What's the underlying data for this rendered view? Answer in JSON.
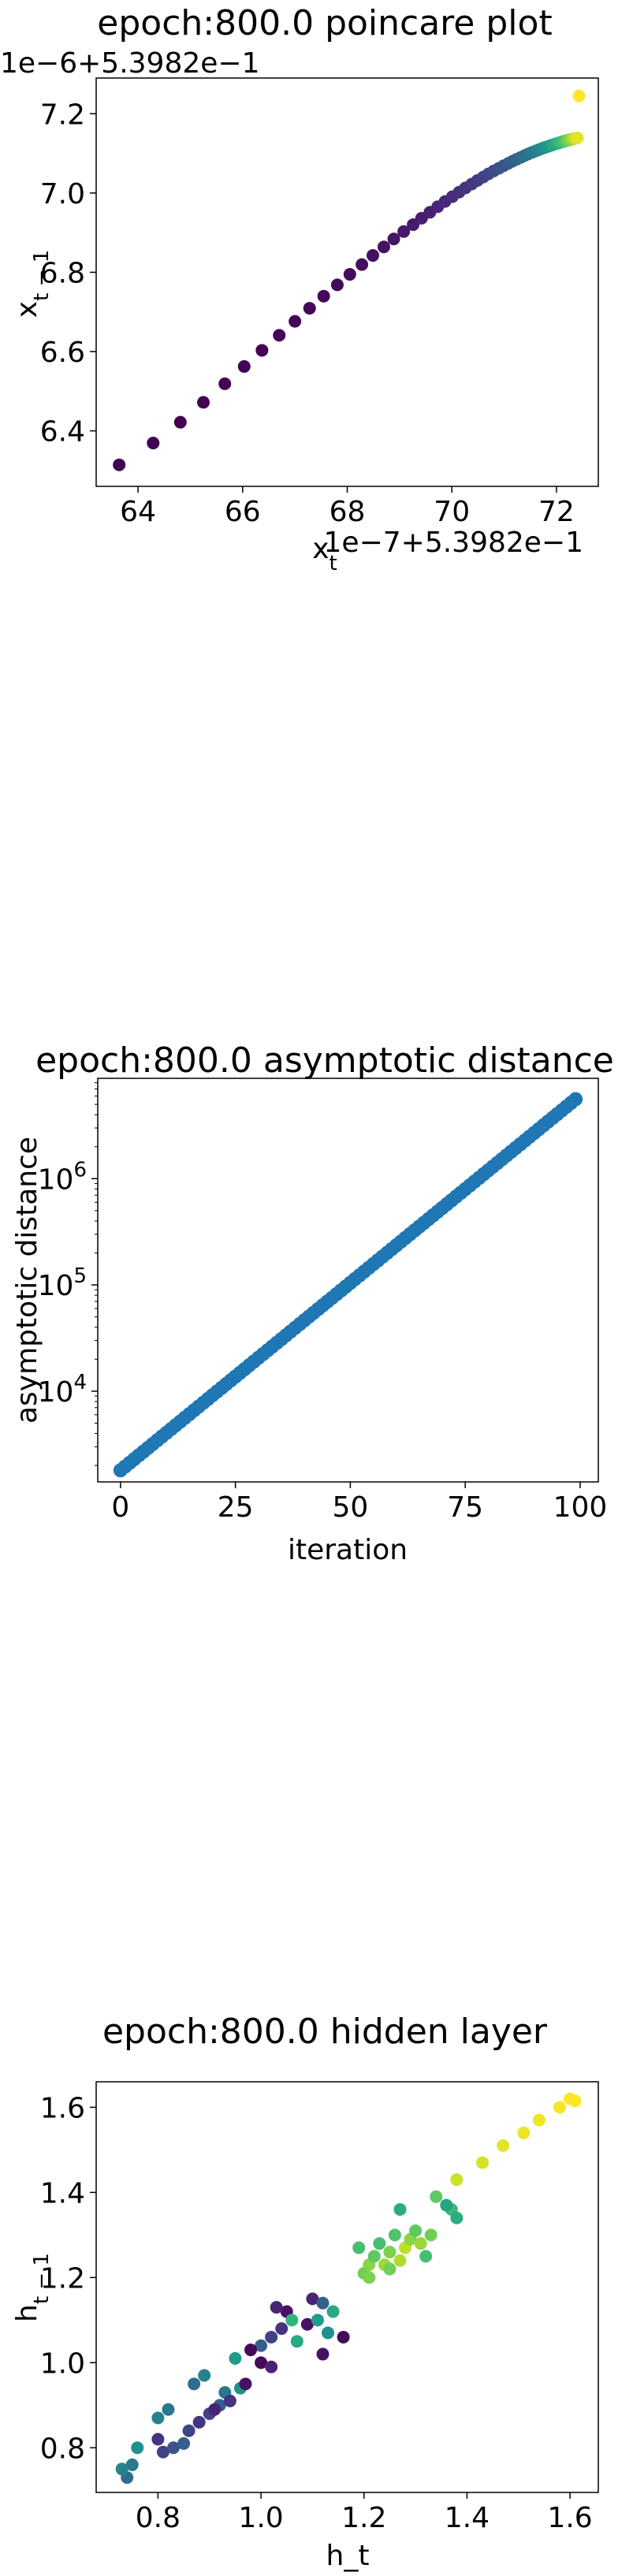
{
  "chart_data": [
    {
      "type": "scatter",
      "title": "epoch:800.0 poincare plot",
      "xlabel": "x_t",
      "ylabel": "x_{t-1}",
      "x_offset_label": "1e−7+5.3982e−1",
      "y_offset_label": "1e−6+5.3982e−1",
      "x_ticks": [
        "64",
        "66",
        "68",
        "70",
        "72"
      ],
      "y_ticks": [
        "6.4",
        "6.6",
        "6.8",
        "7.0",
        "7.2"
      ],
      "xlim": [
        63.2,
        72.8
      ],
      "ylim": [
        6.26,
        7.29
      ],
      "colormap": "viridis",
      "x": [
        63.64,
        64.29,
        64.81,
        65.25,
        65.66,
        66.03,
        66.37,
        66.7,
        67.0,
        67.28,
        67.55,
        67.81,
        68.05,
        68.28,
        68.49,
        68.7,
        68.89,
        69.08,
        69.26,
        69.42,
        69.58,
        69.73,
        69.87,
        70.01,
        70.14,
        70.26,
        70.38,
        70.49,
        70.6,
        70.7,
        70.8,
        70.9,
        70.99,
        71.08,
        71.16,
        71.24,
        71.32,
        71.39,
        71.46,
        71.53,
        71.6,
        71.66,
        71.72,
        71.78,
        71.84,
        71.89,
        71.94,
        71.99,
        72.04,
        72.08,
        72.12,
        72.16,
        72.2,
        72.24,
        72.28,
        72.31,
        72.34,
        72.37,
        72.4,
        72.43
      ],
      "y": [
        6.3143,
        6.3693,
        6.4217,
        6.4719,
        6.5188,
        6.5624,
        6.6031,
        6.641,
        6.6763,
        6.7092,
        6.7398,
        6.7683,
        6.7948,
        6.8195,
        6.8425,
        6.864,
        6.884,
        6.9027,
        6.9201,
        6.9363,
        6.9514,
        6.9655,
        6.9786,
        6.9908,
        7.0022,
        7.0128,
        7.0226,
        7.0317,
        7.0402,
        7.0481,
        7.0555,
        7.0624,
        7.0688,
        7.0747,
        7.0802,
        7.0853,
        7.09,
        7.0944,
        7.0985,
        7.1023,
        7.1058,
        7.1091,
        7.1121,
        7.1149,
        7.1175,
        7.1199,
        7.1221,
        7.1242,
        7.1261,
        7.1279,
        7.1296,
        7.1311,
        7.1325,
        7.1338,
        7.135,
        7.1361,
        7.1372,
        7.1381,
        7.139,
        7.2449
      ]
    },
    {
      "type": "line",
      "title": "epoch:800.0 asymptotic distance",
      "xlabel": "iteration",
      "ylabel": "asymptotic distance",
      "yscale": "log",
      "x_ticks": [
        "0",
        "25",
        "50",
        "75",
        "100"
      ],
      "y_ticks": [
        "10^4",
        "10^5",
        "10^6"
      ],
      "xlim": [
        -4.95,
        103.95
      ],
      "ylim": [
        1400,
        8800000
      ],
      "x_start": 0,
      "x_end": 99,
      "y_start": 1800,
      "y_end": 5600000,
      "marker": "o",
      "color": "#1f77b4"
    },
    {
      "type": "scatter",
      "title": "epoch:800.0 hidden layer",
      "xlabel": "h_t",
      "ylabel": "h_{t-1}",
      "x_ticks": [
        "0.8",
        "1.0",
        "1.2",
        "1.4",
        "1.6"
      ],
      "y_ticks": [
        "0.8",
        "1.0",
        "1.2",
        "1.4",
        "1.6"
      ],
      "xlim": [
        0.68,
        1.655
      ],
      "ylim": [
        0.695,
        1.66
      ],
      "colormap": "viridis",
      "points": [
        [
          0.74,
          0.73,
          0.35
        ],
        [
          0.75,
          0.76,
          0.4
        ],
        [
          0.73,
          0.75,
          0.45
        ],
        [
          0.76,
          0.8,
          0.5
        ],
        [
          0.8,
          0.87,
          0.45
        ],
        [
          0.82,
          0.89,
          0.4
        ],
        [
          0.8,
          0.82,
          0.15
        ],
        [
          0.81,
          0.79,
          0.2
        ],
        [
          0.83,
          0.8,
          0.25
        ],
        [
          0.85,
          0.81,
          0.3
        ],
        [
          0.86,
          0.84,
          0.2
        ],
        [
          0.88,
          0.86,
          0.15
        ],
        [
          0.9,
          0.88,
          0.2
        ],
        [
          0.92,
          0.9,
          0.3
        ],
        [
          0.93,
          0.93,
          0.4
        ],
        [
          0.96,
          0.94,
          0.5
        ],
        [
          0.89,
          0.97,
          0.45
        ],
        [
          0.87,
          0.95,
          0.35
        ],
        [
          0.95,
          1.01,
          0.55
        ],
        [
          1.0,
          1.04,
          0.3
        ],
        [
          1.02,
          1.06,
          0.2
        ],
        [
          1.04,
          1.08,
          0.15
        ],
        [
          1.05,
          1.12,
          0.05
        ],
        [
          1.07,
          1.05,
          0.6
        ],
        [
          1.09,
          1.09,
          0.05
        ],
        [
          1.1,
          1.15,
          0.1
        ],
        [
          1.11,
          1.1,
          0.55
        ],
        [
          1.12,
          1.14,
          0.3
        ],
        [
          1.13,
          1.07,
          0.5
        ],
        [
          1.06,
          1.1,
          0.65
        ],
        [
          1.0,
          1.0,
          0.02
        ],
        [
          0.98,
          1.03,
          0.02
        ],
        [
          1.02,
          0.99,
          0.1
        ],
        [
          1.12,
          1.02,
          0.05
        ],
        [
          1.16,
          1.06,
          0.02
        ],
        [
          1.14,
          1.12,
          0.6
        ],
        [
          1.19,
          1.27,
          0.7
        ],
        [
          1.2,
          1.21,
          0.78
        ],
        [
          1.21,
          1.23,
          0.82
        ],
        [
          1.22,
          1.25,
          0.75
        ],
        [
          1.23,
          1.28,
          0.7
        ],
        [
          1.24,
          1.23,
          0.85
        ],
        [
          1.25,
          1.26,
          0.8
        ],
        [
          1.26,
          1.3,
          0.72
        ],
        [
          1.27,
          1.24,
          0.88
        ],
        [
          1.28,
          1.27,
          0.9
        ],
        [
          1.29,
          1.29,
          0.82
        ],
        [
          1.3,
          1.31,
          0.75
        ],
        [
          1.31,
          1.28,
          0.85
        ],
        [
          1.32,
          1.25,
          0.7
        ],
        [
          1.27,
          1.36,
          0.62
        ],
        [
          1.34,
          1.39,
          0.75
        ],
        [
          1.37,
          1.36,
          0.68
        ],
        [
          1.38,
          1.34,
          0.62
        ],
        [
          1.36,
          1.37,
          0.58
        ],
        [
          1.33,
          1.3,
          0.78
        ],
        [
          1.38,
          1.43,
          0.92
        ],
        [
          1.43,
          1.47,
          0.94
        ],
        [
          1.47,
          1.51,
          0.96
        ],
        [
          1.51,
          1.54,
          0.97
        ],
        [
          1.54,
          1.57,
          0.98
        ],
        [
          1.58,
          1.6,
          0.99
        ],
        [
          1.6,
          1.62,
          1.0
        ],
        [
          1.61,
          1.615,
          1.0
        ],
        [
          1.25,
          1.22,
          0.78
        ],
        [
          1.21,
          1.2,
          0.8
        ],
        [
          0.91,
          0.89,
          0.1
        ],
        [
          0.94,
          0.91,
          0.15
        ],
        [
          0.97,
          0.95,
          0.05
        ],
        [
          1.03,
          1.13,
          0.1
        ]
      ]
    }
  ]
}
